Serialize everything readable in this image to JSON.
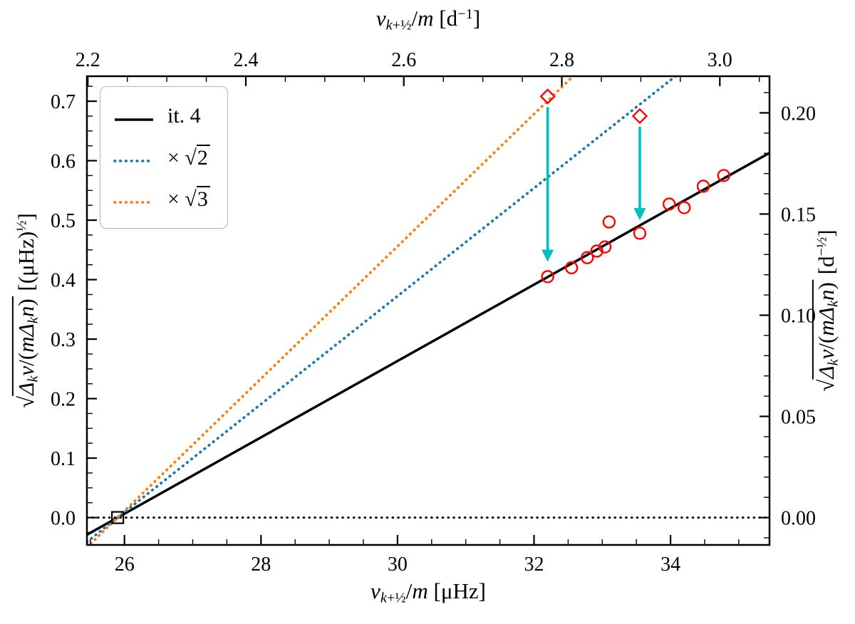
{
  "figure": {
    "background": "#ffffff",
    "axis_color": "#000000",
    "tick_label_color": "#000000"
  },
  "chart_data": {
    "type": "line+scatter",
    "title": "",
    "axes": {
      "bottom": {
        "label": "*ν*_{*k*+½}/*m* [μHz]",
        "lim": [
          25.45,
          35.45
        ],
        "major_ticks": [
          26,
          28,
          30,
          32,
          34
        ],
        "major_labels": [
          "26",
          "28",
          "30",
          "32",
          "34"
        ],
        "minor_step": 0.5
      },
      "top": {
        "label": "*ν*_{*k*+½}/*m* [d^{−1}]",
        "unit_per_bottom": 0.0864,
        "major_ticks": [
          2.2,
          2.4,
          2.6,
          2.8,
          3.0
        ],
        "major_labels": [
          "2.2",
          "2.4",
          "2.6",
          "2.8",
          "3.0"
        ],
        "minor_step": 0.05
      },
      "left": {
        "label": "√[*Δ*_{*k*}*ν*/(*mΔ*_{*k*}*n*)] [(μHz)^{½}]",
        "lim": [
          -0.046,
          0.742
        ],
        "major_ticks": [
          0.0,
          0.1,
          0.2,
          0.3,
          0.4,
          0.5,
          0.6,
          0.7
        ],
        "major_labels": [
          "0.0",
          "0.1",
          "0.2",
          "0.3",
          "0.4",
          "0.5",
          "0.6",
          "0.7"
        ],
        "minor_step": 0.025
      },
      "right": {
        "label": "√[*Δ*_{*k*}*ν*/(*mΔ*_{*k*}*n*)] [d^{−½}]",
        "unit_per_left": 0.29394,
        "major_ticks": [
          0.0,
          0.05,
          0.1,
          0.15,
          0.2
        ],
        "major_labels": [
          "0.00",
          "0.05",
          "0.10",
          "0.15",
          "0.20"
        ],
        "minor_step": 0.01
      }
    },
    "series": [
      {
        "name": "it. 4",
        "kind": "line",
        "color": "#000000",
        "dash": "solid",
        "x0": 25.9,
        "slope": 0.0642
      },
      {
        "name": "× √[2]",
        "kind": "line",
        "color": "#1f77b4",
        "dash": "dotted",
        "x0": 25.9,
        "slope": 0.0908
      },
      {
        "name": "× √[3]",
        "kind": "line",
        "color": "#ff7f0e",
        "dash": "dotted",
        "x0": 25.9,
        "slope": 0.1112
      }
    ],
    "zero_line": {
      "y": 0.0,
      "color": "#000000",
      "dash": "dotted"
    },
    "markers": {
      "anchor_square": {
        "x": 25.9,
        "y": 0.0,
        "color": "#000000"
      },
      "circles": {
        "color": "#ff0000",
        "points": [
          [
            32.2,
            0.405
          ],
          [
            32.55,
            0.42
          ],
          [
            32.78,
            0.437
          ],
          [
            32.92,
            0.448
          ],
          [
            33.04,
            0.455
          ],
          [
            33.1,
            0.497
          ],
          [
            33.55,
            0.478
          ],
          [
            33.98,
            0.527
          ],
          [
            34.2,
            0.521
          ],
          [
            34.48,
            0.557
          ],
          [
            34.78,
            0.575
          ]
        ]
      },
      "diamonds": {
        "color": "#ff0000",
        "points": [
          [
            32.2,
            0.708
          ],
          [
            33.55,
            0.675
          ]
        ]
      }
    },
    "arrows": {
      "color": "#00bfbf",
      "items": [
        {
          "x": 32.2,
          "from": 0.69,
          "to": 0.43
        },
        {
          "x": 33.55,
          "from": 0.657,
          "to": 0.5
        }
      ]
    },
    "legend": {
      "position": "upper-left"
    }
  }
}
